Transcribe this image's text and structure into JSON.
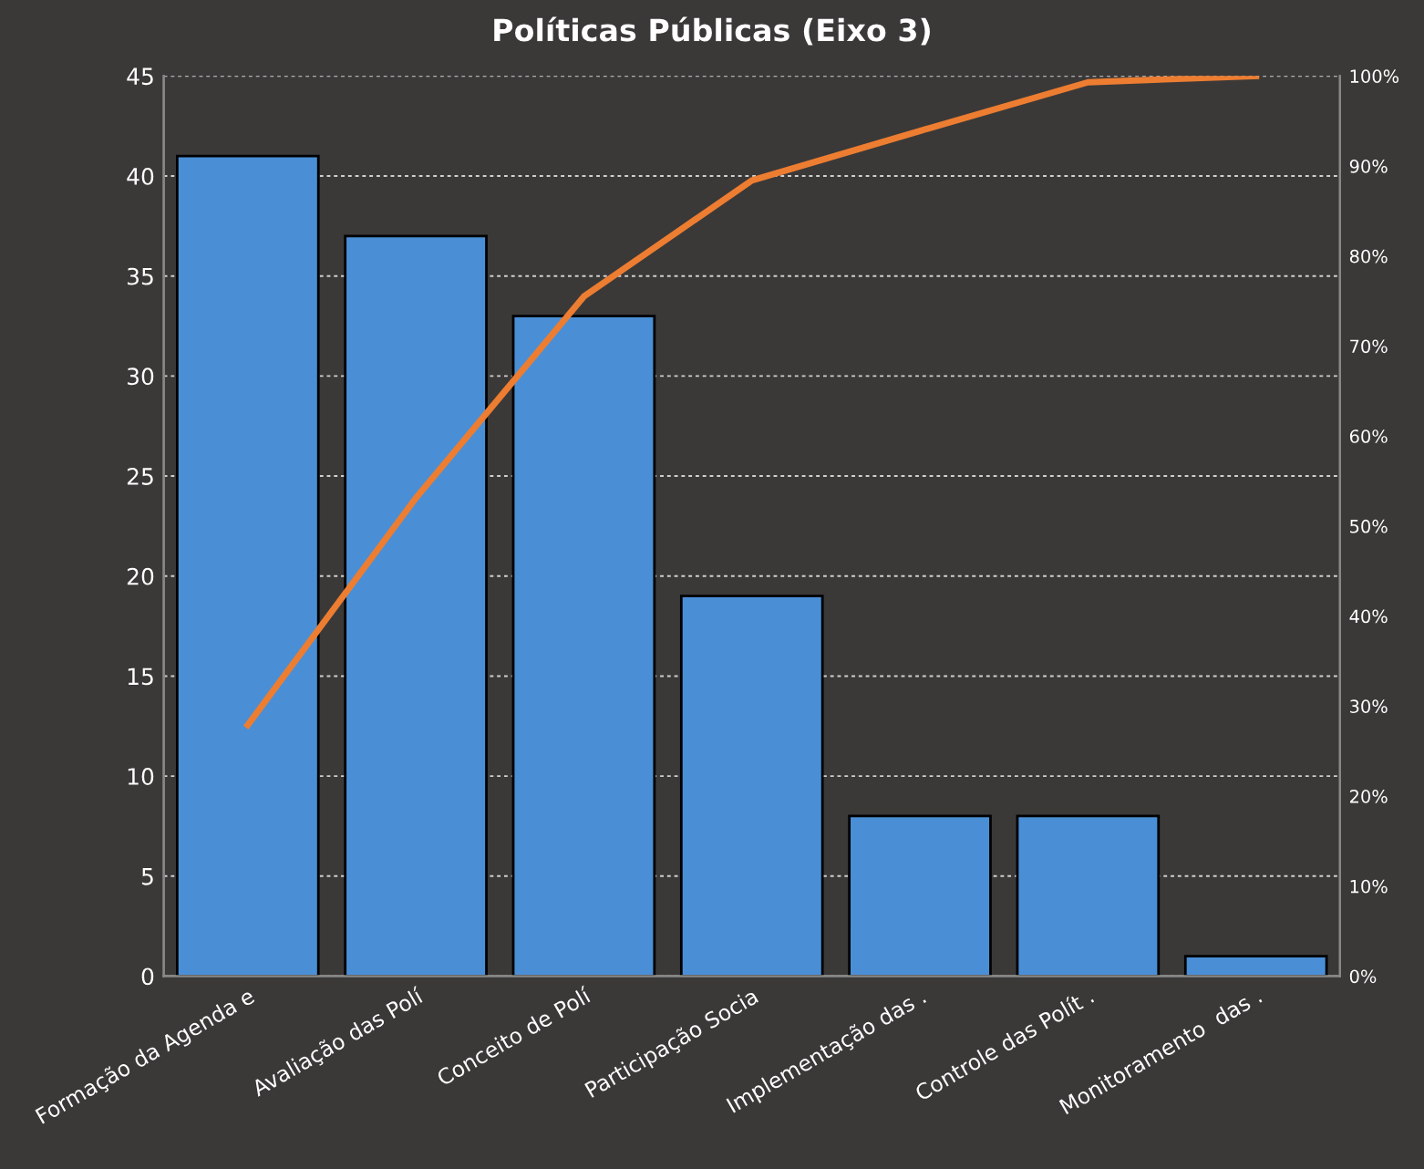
{
  "chart_data": {
    "type": "bar",
    "title": "Políticas Públicas (Eixo 3)",
    "categories": [
      "Formação da Agenda e",
      "Avaliação das Polí",
      "Conceito de Polí",
      "Participação Socia",
      "Implementação das .",
      "Controle das Polít .",
      "Monitoramento  das ."
    ],
    "series": [
      {
        "color": "#4a8fd6",
        "values": [
          41,
          37,
          33,
          19,
          8,
          8,
          1
        ]
      },
      {
        "type": "line",
        "axis": "y2",
        "color": "#ed7d31",
        "values": [
          27.9,
          53.1,
          75.5,
          88.4,
          93.9,
          99.3,
          100
        ]
      }
    ],
    "ylim": [
      0,
      45
    ],
    "yticks": [
      0,
      5,
      10,
      15,
      20,
      25,
      30,
      35,
      40,
      45
    ],
    "y2lim": [
      0,
      100
    ],
    "y2ticks": [
      {
        "value": 0,
        "label": "0%"
      },
      {
        "value": 10,
        "label": "10%"
      },
      {
        "value": 20,
        "label": "20%"
      },
      {
        "value": 30,
        "label": "30%"
      },
      {
        "value": 40,
        "label": "40%"
      },
      {
        "value": 50,
        "label": "50%"
      },
      {
        "value": 60,
        "label": "60%"
      },
      {
        "value": 70,
        "label": "70%"
      },
      {
        "value": 80,
        "label": "80%"
      },
      {
        "value": 90,
        "label": "90%"
      },
      {
        "value": 100,
        "label": "100%"
      }
    ],
    "grid": "y",
    "marker": "none",
    "line_style": "solid"
  }
}
